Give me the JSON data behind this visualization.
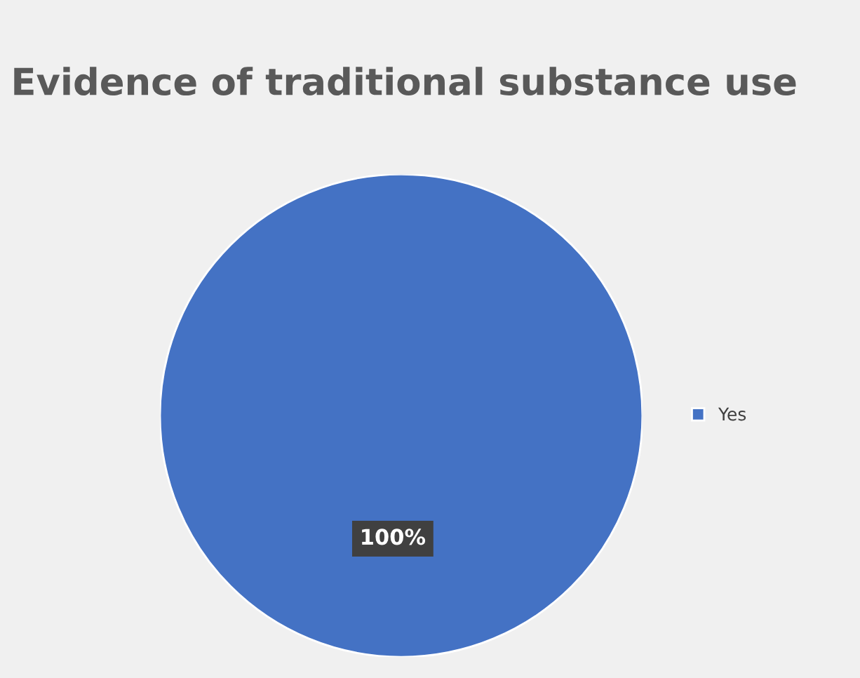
{
  "chart_data": {
    "type": "pie",
    "title": "Evidence of traditional substance use",
    "categories": [
      "Yes"
    ],
    "values": [
      100
    ],
    "colors": [
      "#4472c4"
    ],
    "value_labels": [
      "100%"
    ],
    "legend": "right"
  }
}
